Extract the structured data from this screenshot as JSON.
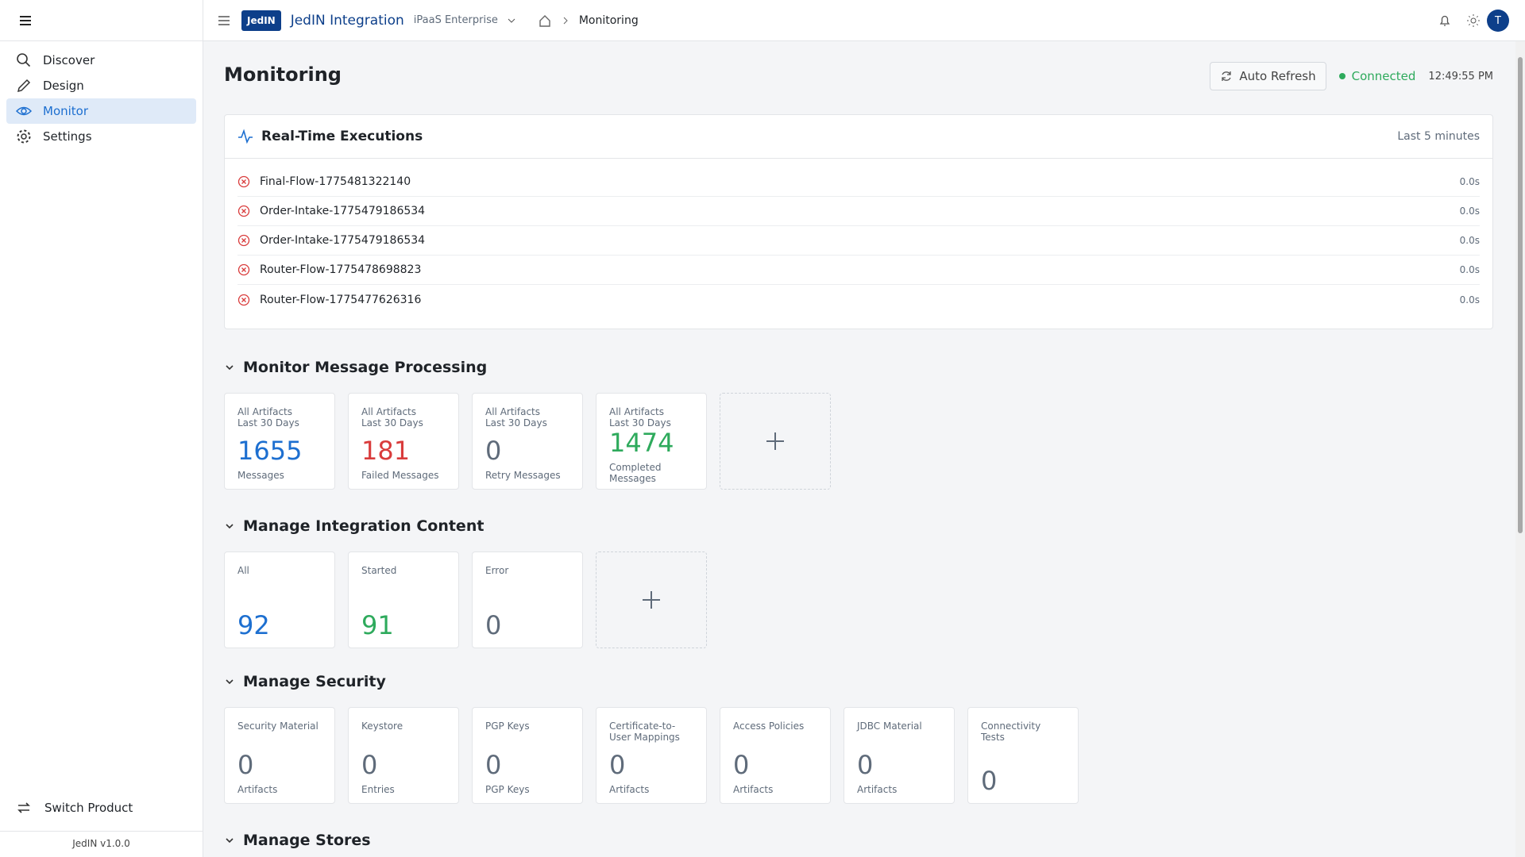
{
  "sidebar": {
    "nav": [
      "Discover",
      "Design",
      "Monitor",
      "Settings"
    ],
    "switch": "Switch Product",
    "version": "JedIN v1.0.0"
  },
  "topbar": {
    "logo": "JedIN",
    "product": "JedIN Integration",
    "edition": "iPaaS Enterprise",
    "breadcrumb": "Monitoring",
    "avatar": "T"
  },
  "header": {
    "title": "Monitoring",
    "auto_refresh": "Auto Refresh",
    "status": "Connected",
    "time": "12:49:55 PM"
  },
  "executions": {
    "title": "Real-Time Executions",
    "range": "Last 5 minutes",
    "rows": [
      {
        "name": "Final-Flow-1775481322140",
        "duration": "0.0s"
      },
      {
        "name": "Order-Intake-1775479186534",
        "duration": "0.0s"
      },
      {
        "name": "Order-Intake-1775479186534",
        "duration": "0.0s"
      },
      {
        "name": "Router-Flow-1775478698823",
        "duration": "0.0s"
      },
      {
        "name": "Router-Flow-1775477626316",
        "duration": "0.0s"
      }
    ]
  },
  "sections": [
    {
      "title": "Monitor Message Processing",
      "add": true,
      "tiles": [
        {
          "scope": "All Artifacts",
          "period": "Last 30 Days",
          "value": 1655,
          "unit": "Messages",
          "color": "#1d6fd0"
        },
        {
          "scope": "All Artifacts",
          "period": "Last 30 Days",
          "value": 181,
          "unit": "Failed Messages",
          "color": "#d93c3c"
        },
        {
          "scope": "All Artifacts",
          "period": "Last 30 Days",
          "value": 0,
          "unit": "Retry Messages",
          "color": "#5f6b7a"
        },
        {
          "scope": "All Artifacts",
          "period": "Last 30 Days",
          "value": 1474,
          "unit": "Completed Messages",
          "color": "#2eaa5c"
        }
      ]
    },
    {
      "title": "Manage Integration Content",
      "add": true,
      "tiles": [
        {
          "scope": "All",
          "value": 92,
          "color": "#1d6fd0"
        },
        {
          "scope": "Started",
          "value": 91,
          "color": "#2eaa5c"
        },
        {
          "scope": "Error",
          "value": 0,
          "color": "#5f6b7a"
        }
      ]
    },
    {
      "title": "Manage Security",
      "add": false,
      "tiles": [
        {
          "scope": "Security Material",
          "value": 0,
          "unit": "Artifacts",
          "color": "#5f6b7a"
        },
        {
          "scope": "Keystore",
          "value": 0,
          "unit": "Entries",
          "color": "#5f6b7a"
        },
        {
          "scope": "PGP Keys",
          "value": 0,
          "unit": "PGP Keys",
          "color": "#5f6b7a"
        },
        {
          "scope": "Certificate-to-User Mappings",
          "value": 0,
          "unit": "Artifacts",
          "color": "#5f6b7a"
        },
        {
          "scope": "Access Policies",
          "value": 0,
          "unit": "Artifacts",
          "color": "#5f6b7a"
        },
        {
          "scope": "JDBC Material",
          "value": 0,
          "unit": "Artifacts",
          "color": "#5f6b7a"
        },
        {
          "scope": "Connectivity Tests",
          "value": 0,
          "color": "#5f6b7a"
        }
      ]
    },
    {
      "title": "Manage Stores",
      "add": false,
      "tiles": []
    }
  ]
}
